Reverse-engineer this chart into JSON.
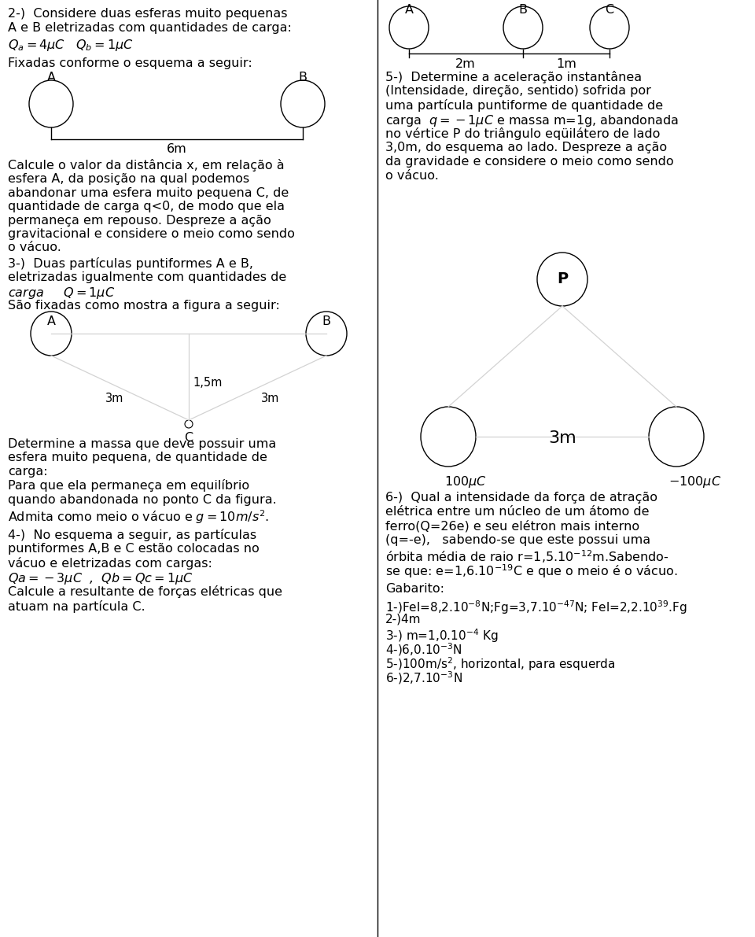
{
  "bg_color": "#ffffff",
  "left": {
    "q2_line1": "2-)  Considere duas esferas muito pequenas",
    "q2_line2": "A e B eletrizadas com quantidades de carga:",
    "q2_formula": "$Q_a = 4\\mu C$   $Q_b = 1\\mu C$",
    "q2_fixadas": "Fixadas conforme o esquema a seguir:",
    "q2_body": "Calcule o valor da distância x, em relação à\nesfera A, da posição na qual podemos\nabandonar uma esfera muito pequena C, de\nquantidade de carga q<0, de modo que ela\npermaneça em repouso. Despreze a ação\ngravitacional e considere o meio como sendo\no vácuo.",
    "q3_line1": "3-)  Duas partículas puntiformes A e B,",
    "q3_line2": "eletrizadas igualmente com quantidades de",
    "q3_line3": "carga     $Q = 1\\mu C$",
    "q3_line4": "São fixadas como mostra a figura a seguir:",
    "q3_body": "Determine a massa que deve possuir uma\nesfera muito pequena, de quantidade de\ncarga:\nPara que ela permaneça em equilíbrio\nquando abandonada no ponto C da figura.\nAdmita como meio o vácuo e $g=10m/s^2$.",
    "q4_line1": "4-)  No esquema a seguir, as partículas",
    "q4_line2": "puntiformes A,B e C estão colocadas no",
    "q4_line3": "vácuo e eletrizadas com cargas:",
    "q4_line4": "$Qa = -3\\mu C$  ,  $Qb = Qc = 1\\mu C$",
    "q4_body": "Calcule a resultante de forças elétricas que\natuam na partícula C."
  },
  "right": {
    "q5_line1": "5-)  Determine a aceleração instantânea",
    "q5_line2": "(Intensidade, direção, sentido) sofrida por",
    "q5_line3": "uma partícula puntiforme de quantidade de",
    "q5_line4": "carga  $q = -1\\mu C$ e massa m=1g, abandonada",
    "q5_line5": "no vértice P do triângulo eqüilátero de lado",
    "q5_line6": "3,0m, do esquema ao lado. Despreze a ação",
    "q5_line7": "da gravidade e considere o meio como sendo",
    "q5_line8": "o vácuo.",
    "q6_line1": "6-)  Qual a intensidade da força de atração",
    "q6_line2": "elétrica entre um núcleo de um átomo de",
    "q6_line3": "ferro(Q=26e) e seu elétron mais interno",
    "q6_line4": "(q=-e),   sabendo-se que este possui uma",
    "q6_line5": "órbita média de raio r=1,5.10$^{-12}$m.Sabendo-",
    "q6_line6": "se que: e=1,6.10$^{-19}$C e que o meio é o vácuo.",
    "gab_title": "Gabarito:",
    "gab1": "1-)Fel=8,2.10$^{-8}$N;Fg=3,7.10$^{-47}$N; Fel=2,2.10$^{39}$.Fg",
    "gab2": "2-)4m",
    "gab3": "3-) m=1,0.10$^{-4}$ Kg",
    "gab4": "4-)6,0.10$^{-3}$N",
    "gab5": "5-)100m/s$^2$, horizontal, para esquerda",
    "gab6": "6-)2,7.10$^{-3}$N"
  }
}
